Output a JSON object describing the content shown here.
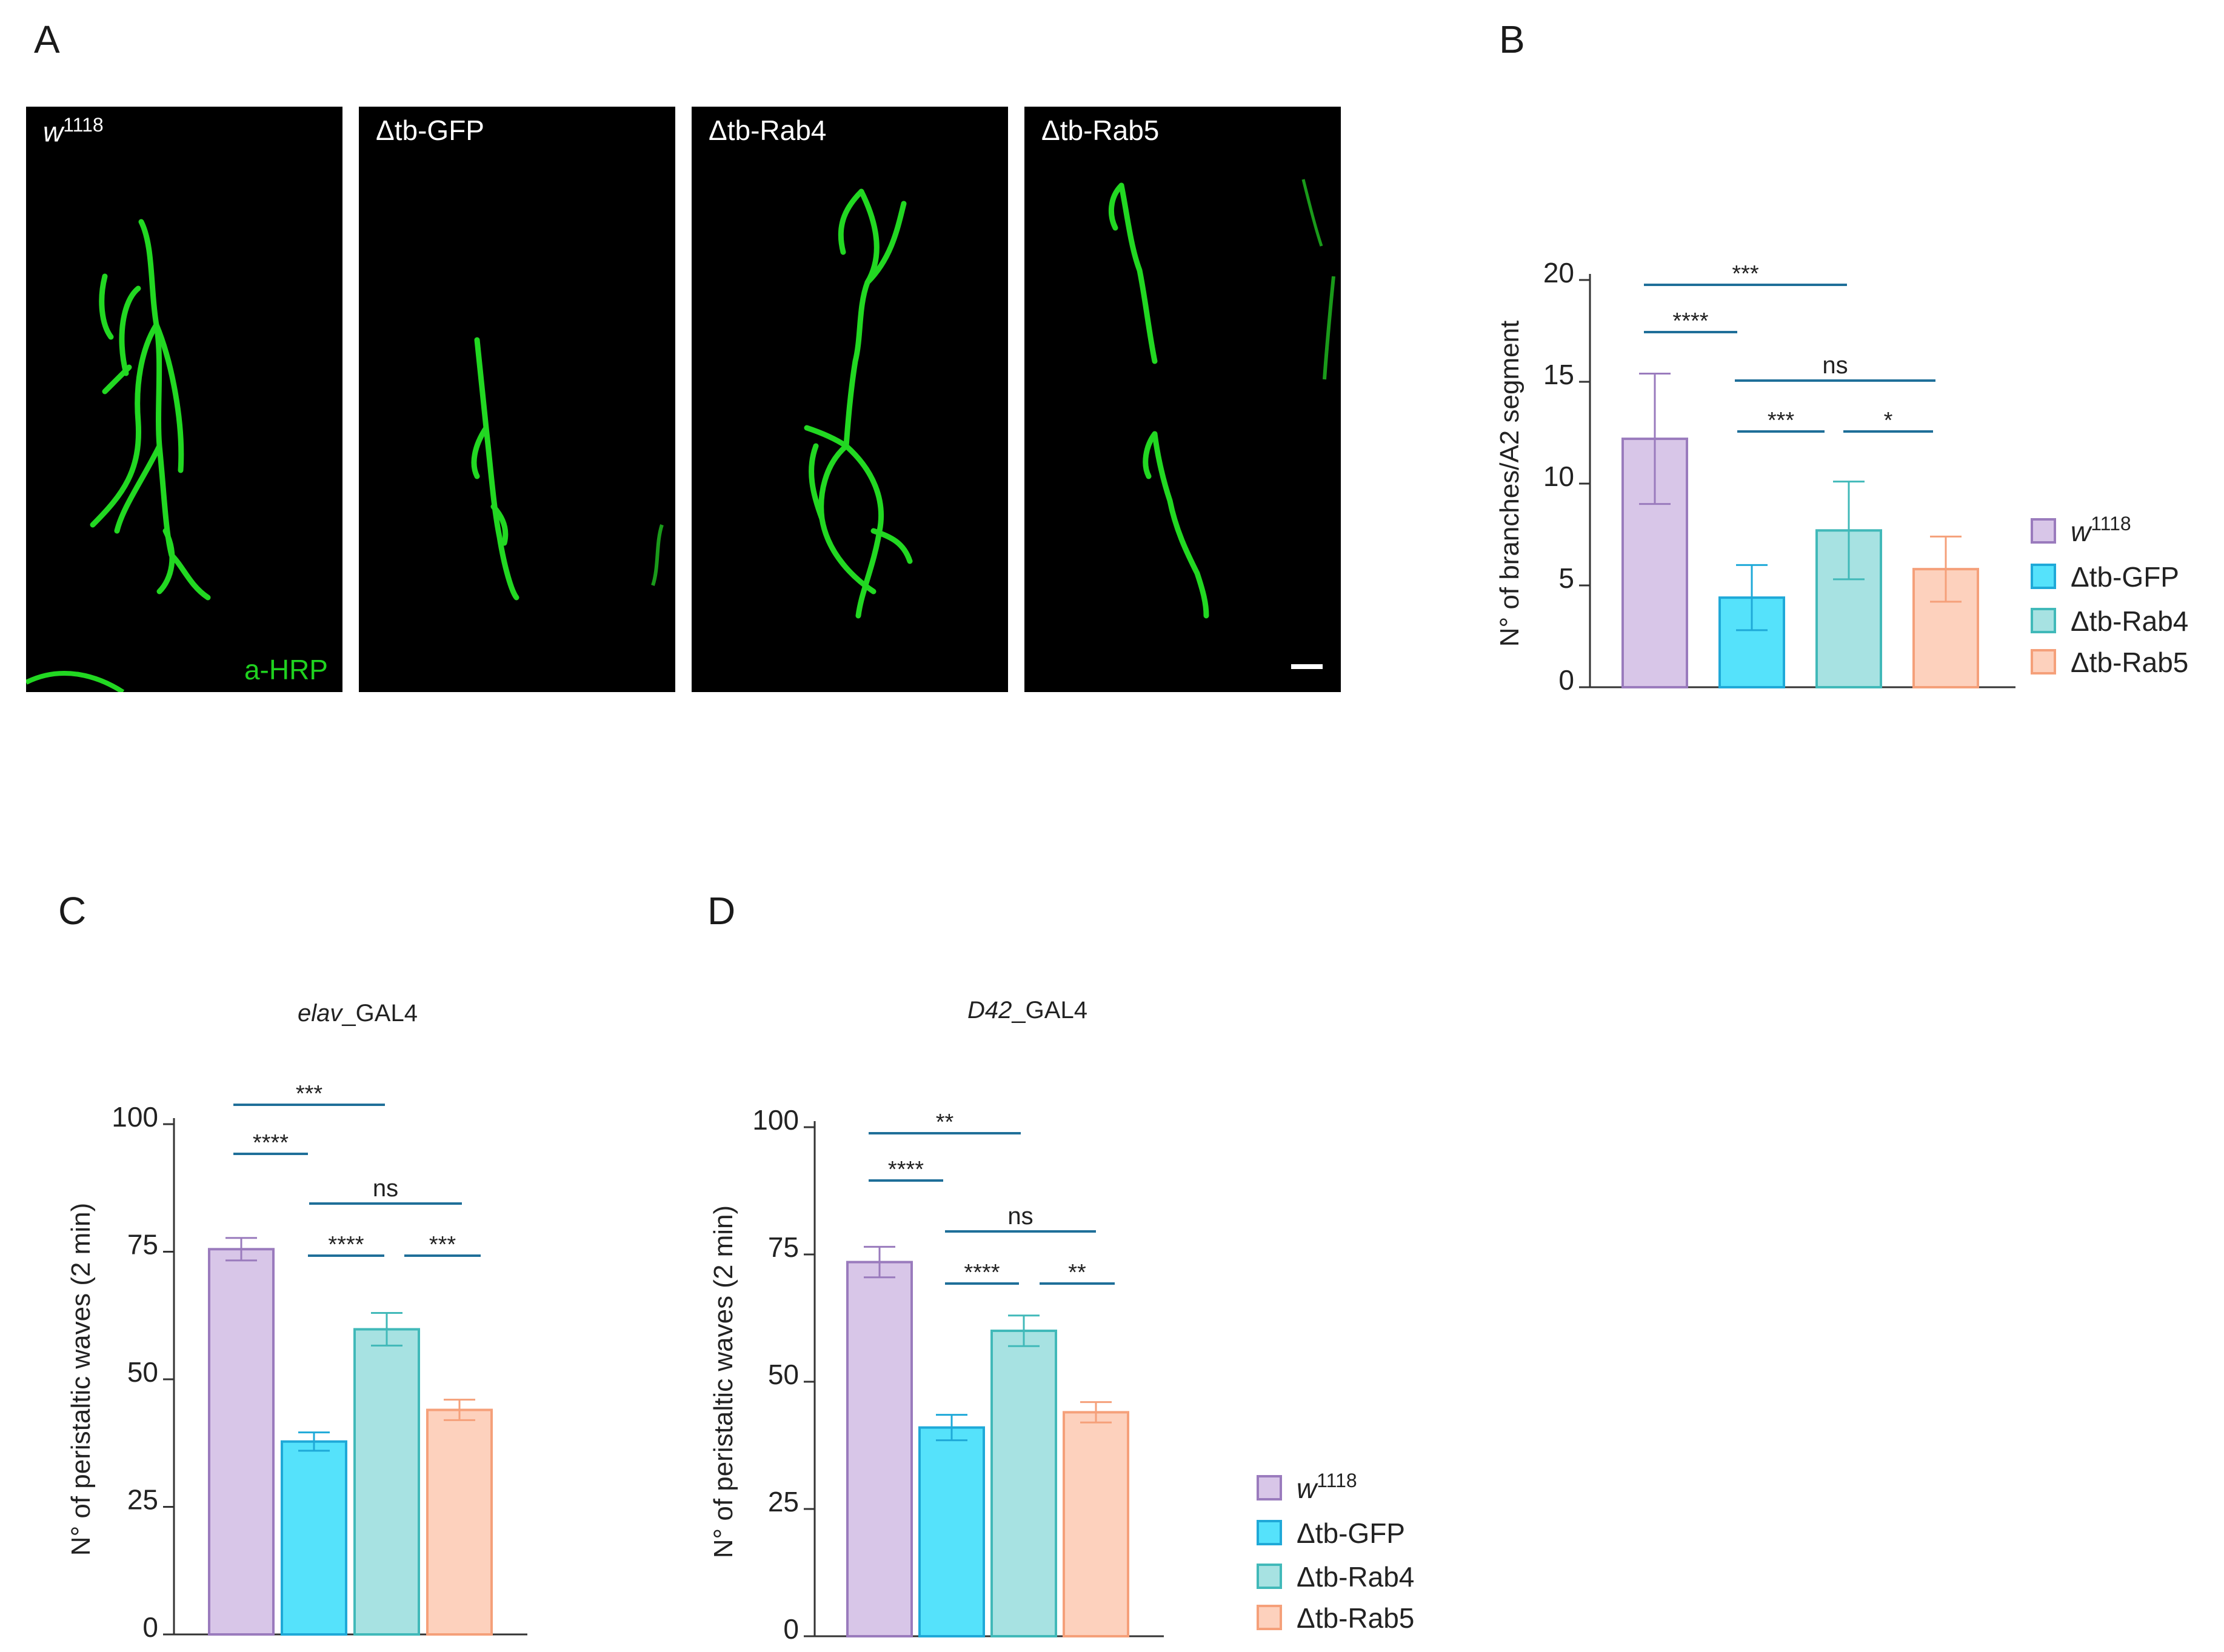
{
  "panels": {
    "A": "A",
    "B": "B",
    "C": "C",
    "D": "D"
  },
  "micrographs": [
    {
      "label": "w",
      "sup": "1118",
      "stain": "a-HRP"
    },
    {
      "label": "Δtb-GFP"
    },
    {
      "label": "Δtb-Rab4"
    },
    {
      "label": "Δtb-Rab5"
    }
  ],
  "colors": {
    "w1118_fill": "#d8c6e8",
    "w1118_edge": "#9a7bbd",
    "gfp_fill": "#55e2fb",
    "gfp_edge": "#1fa9d8",
    "rab4_fill": "#a7e2e2",
    "rab4_edge": "#41b9b9",
    "rab5_fill": "#fdd1bd",
    "rab5_edge": "#f5a07a",
    "sig_line": "#1f6f99",
    "neuron": "#22d822"
  },
  "legend": [
    {
      "label": "w",
      "sup": "1118"
    },
    {
      "label": "Δtb-GFP"
    },
    {
      "label": "Δtb-Rab4"
    },
    {
      "label": "Δtb-Rab5"
    }
  ],
  "chart_data": [
    {
      "panel": "B",
      "type": "bar",
      "title": "",
      "ylabel": "N° of branches/A2 segment",
      "ylim": [
        0,
        20
      ],
      "yticks": [
        0,
        5,
        10,
        15,
        20
      ],
      "categories": [
        "w1118",
        "Δtb-GFP",
        "Δtb-Rab4",
        "Δtb-Rab5"
      ],
      "values": [
        12.2,
        4.4,
        7.7,
        5.8
      ],
      "errors": [
        3.2,
        1.6,
        2.4,
        1.6
      ],
      "significance": [
        {
          "from": 0,
          "to": 2,
          "label": "***"
        },
        {
          "from": 0,
          "to": 1,
          "label": "****"
        },
        {
          "from": 1,
          "to": 3,
          "label": "ns"
        },
        {
          "from": 1,
          "to": 2,
          "label": "***"
        },
        {
          "from": 2,
          "to": 3,
          "label": "*"
        }
      ]
    },
    {
      "panel": "C",
      "type": "bar",
      "title": "elav_GAL4",
      "title_italic": "elav",
      "title_rest": "_GAL4",
      "ylabel": "N° of peristaltic waves (2 min)",
      "ylim": [
        0,
        100
      ],
      "yticks": [
        0,
        25,
        50,
        75,
        100
      ],
      "categories": [
        "w1118",
        "Δtb-GFP",
        "Δtb-Rab4",
        "Δtb-Rab5"
      ],
      "values": [
        75.5,
        37.8,
        59.8,
        44
      ],
      "errors": [
        2.2,
        1.8,
        3.2,
        2
      ],
      "significance": [
        {
          "from": 0,
          "to": 2,
          "label": "***"
        },
        {
          "from": 0,
          "to": 1,
          "label": "****"
        },
        {
          "from": 1,
          "to": 3,
          "label": "ns"
        },
        {
          "from": 1,
          "to": 2,
          "label": "****"
        },
        {
          "from": 2,
          "to": 3,
          "label": "***"
        }
      ]
    },
    {
      "panel": "D",
      "type": "bar",
      "title": "D42_GAL4",
      "title_italic": "D42",
      "title_rest": "_GAL4",
      "ylabel": "N° of peristaltic waves (2 min)",
      "ylim": [
        0,
        100
      ],
      "yticks": [
        0,
        25,
        50,
        75,
        100
      ],
      "categories": [
        "w1118",
        "Δtb-GFP",
        "Δtb-Rab4",
        "Δtb-Rab5"
      ],
      "values": [
        73.5,
        41,
        60,
        44
      ],
      "errors": [
        3,
        2.5,
        3,
        2
      ],
      "significance": [
        {
          "from": 0,
          "to": 2,
          "label": "**"
        },
        {
          "from": 0,
          "to": 1,
          "label": "****"
        },
        {
          "from": 1,
          "to": 3,
          "label": "ns"
        },
        {
          "from": 1,
          "to": 2,
          "label": "****"
        },
        {
          "from": 2,
          "to": 3,
          "label": "**"
        }
      ]
    }
  ]
}
